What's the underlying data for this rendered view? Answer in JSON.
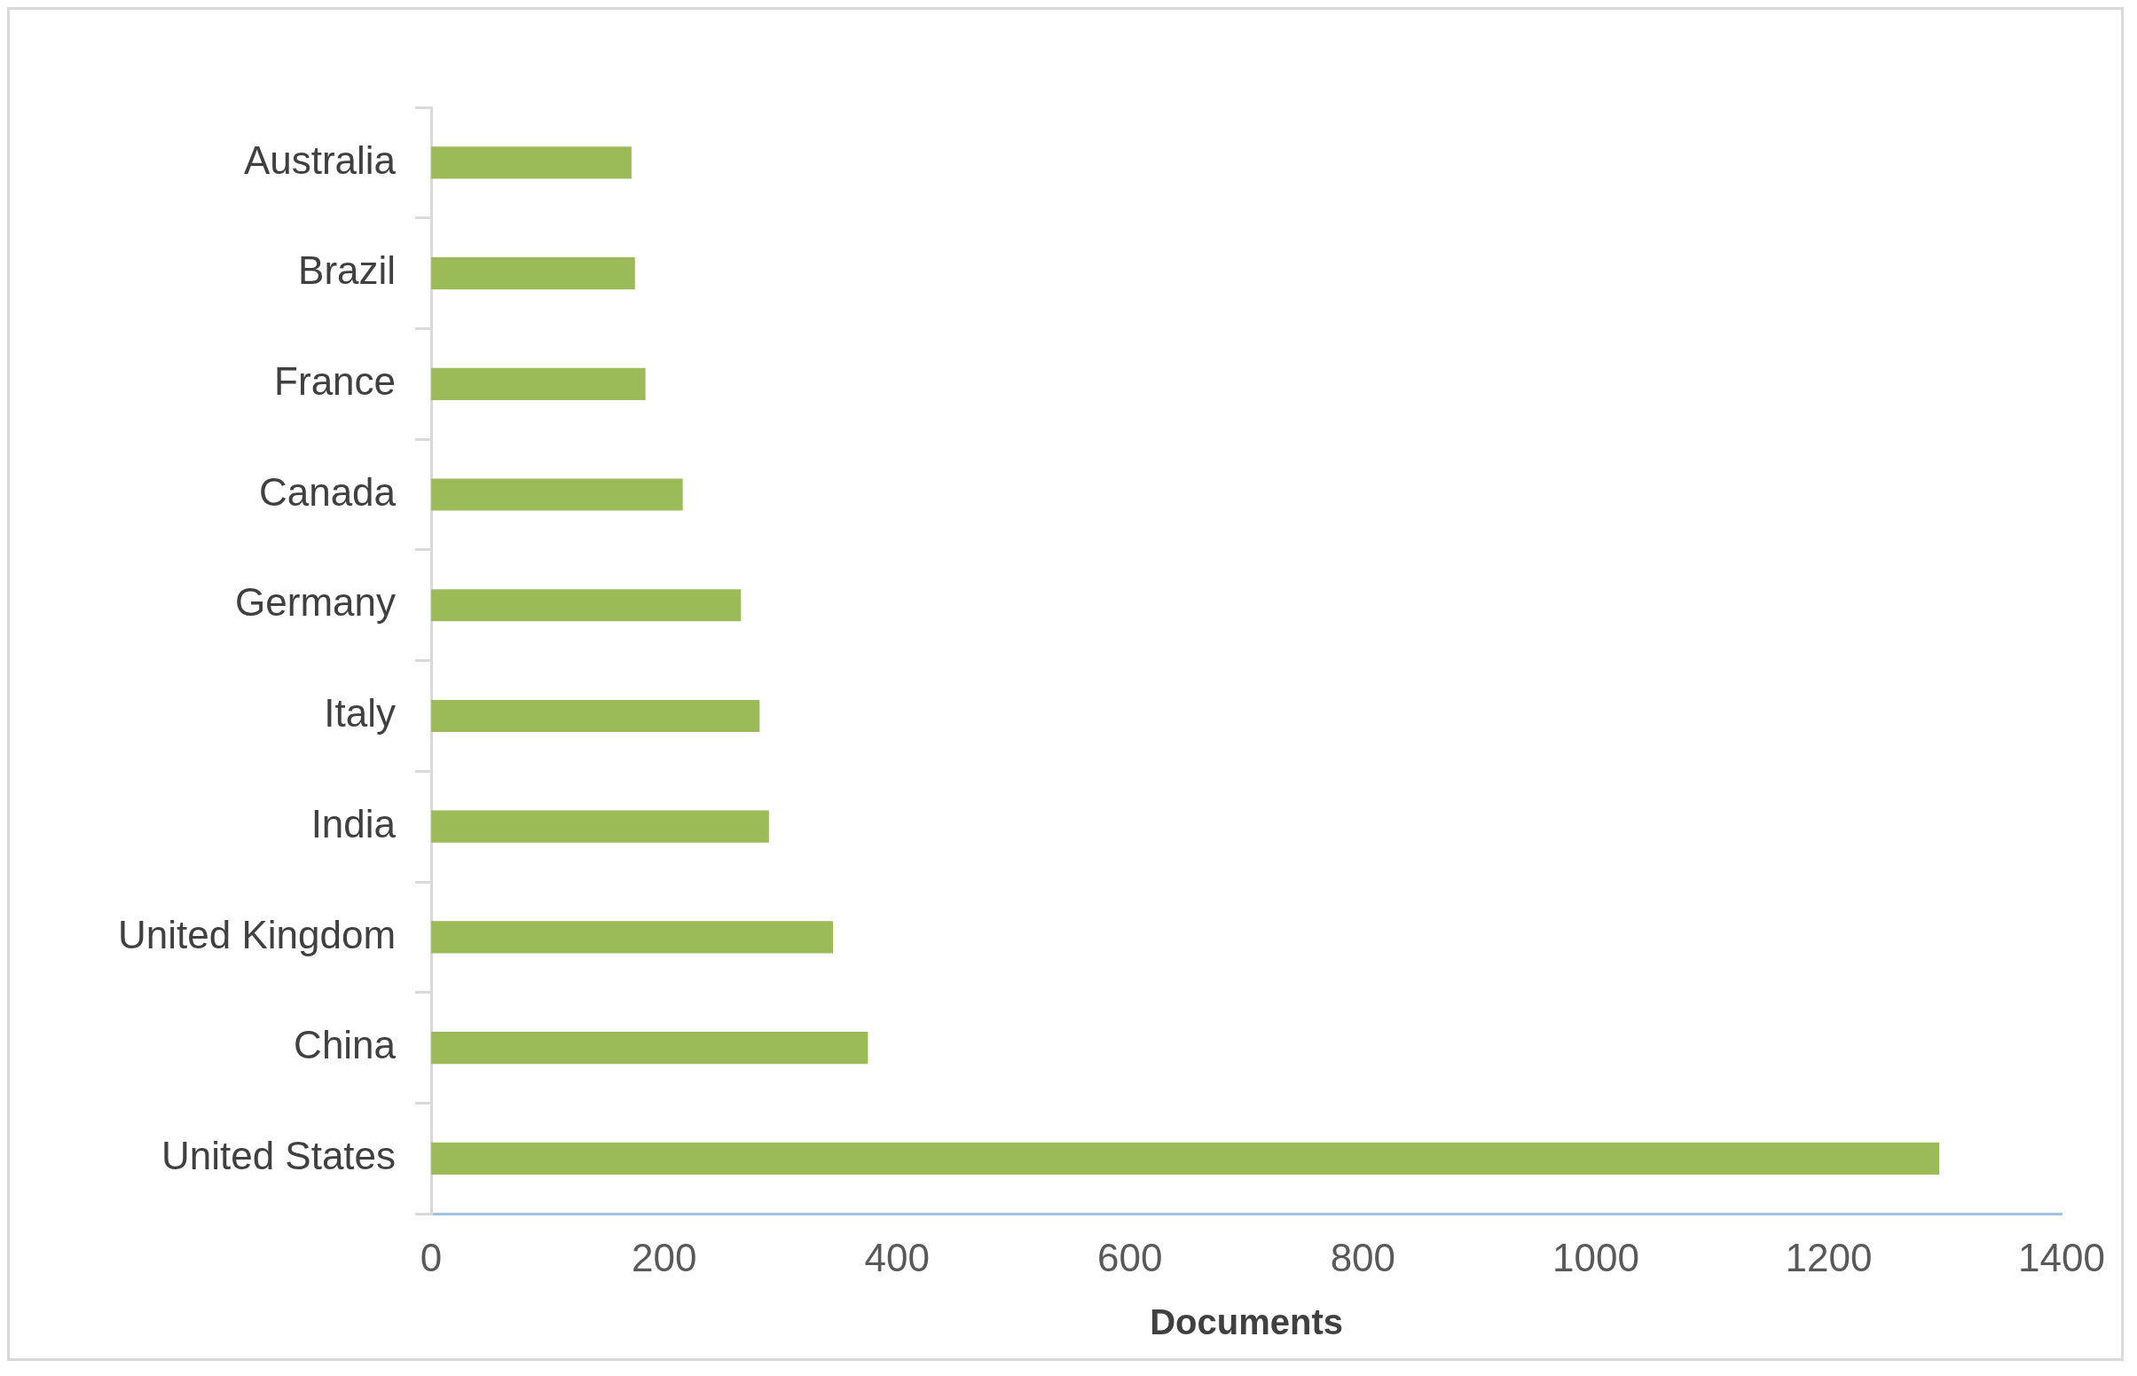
{
  "chart_data": {
    "type": "bar",
    "orientation": "horizontal",
    "xlabel": "Documents",
    "categories": [
      "Australia",
      "Brazil",
      "France",
      "Canada",
      "Germany",
      "Italy",
      "India",
      "United Kingdom",
      "China",
      "United States"
    ],
    "values": [
      172,
      175,
      184,
      216,
      266,
      282,
      290,
      345,
      375,
      1295
    ],
    "color": "#9bbb59",
    "xlim": [
      0,
      1400
    ],
    "xticks": [
      0,
      200,
      400,
      600,
      800,
      1000,
      1200,
      1400
    ]
  }
}
